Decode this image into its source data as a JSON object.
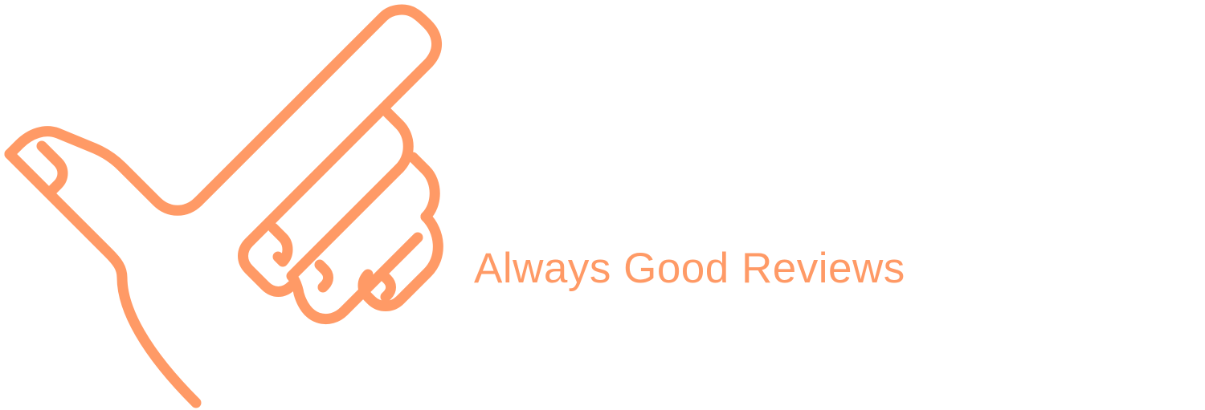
{
  "brand": {
    "name": "Always Good Reviews",
    "icon": "pointing-hand-icon",
    "color": "#FF9A66"
  }
}
